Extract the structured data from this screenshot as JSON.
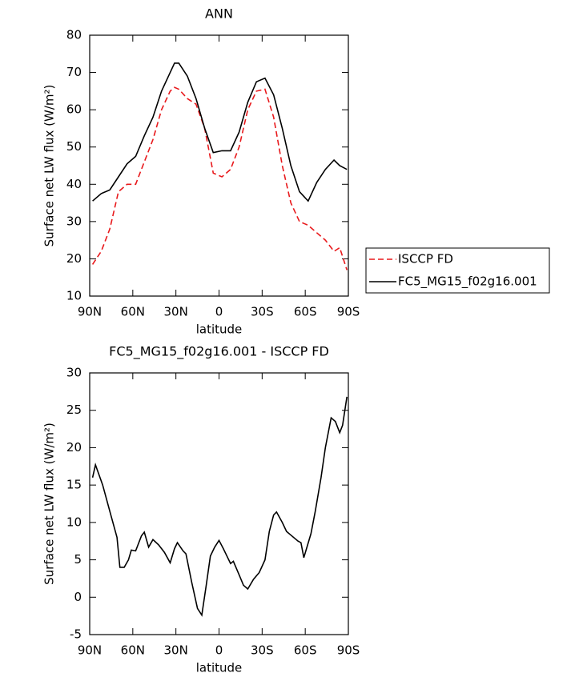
{
  "chart_data": [
    {
      "type": "line",
      "title": "ANN",
      "x_label": "latitude",
      "y_label": "Surface net LW flux (W/m²)",
      "xlim": [
        90,
        -90
      ],
      "xticks": [
        {
          "value": 90,
          "label": "90N"
        },
        {
          "value": 60,
          "label": "60N"
        },
        {
          "value": 30,
          "label": "30N"
        },
        0,
        {
          "value": -30,
          "label": "30S"
        },
        {
          "value": -60,
          "label": "60S"
        },
        {
          "value": -90,
          "label": "90S"
        }
      ],
      "ylim": [
        10,
        80
      ],
      "yticks": [
        10,
        20,
        30,
        40,
        50,
        60,
        70,
        80
      ],
      "x": [
        88,
        82,
        76,
        70,
        64,
        58,
        52,
        46,
        40,
        34,
        31,
        28,
        22,
        16,
        10,
        4,
        -2,
        -8,
        -14,
        -20,
        -26,
        -32,
        -38,
        -44,
        -50,
        -56,
        -62,
        -68,
        -74,
        -80,
        -84,
        -89
      ],
      "series": [
        {
          "name": "ISCCP FD",
          "color": "#e8191c",
          "dashed": true,
          "values": [
            18.5,
            22,
            28,
            38,
            40,
            40,
            46,
            52,
            60,
            65,
            66,
            65.5,
            63,
            61.5,
            55,
            43,
            42,
            44,
            50,
            60,
            65,
            65.5,
            58,
            45,
            35,
            30,
            29,
            27,
            25,
            22,
            23,
            17
          ]
        },
        {
          "name": "FC5_MG15_f02g16.001",
          "color": "#000000",
          "dashed": false,
          "values": [
            35.5,
            37.5,
            38.5,
            42,
            45.5,
            47.5,
            53,
            58,
            65,
            70,
            72.5,
            72.5,
            69,
            63,
            55,
            48.5,
            49,
            49,
            54,
            62,
            67.5,
            68.5,
            64,
            55,
            45,
            38,
            35.5,
            40.5,
            44,
            46.5,
            45,
            44
          ]
        }
      ]
    },
    {
      "type": "line",
      "title": "FC5_MG15_f02g16.001 - ISCCP FD",
      "x_label": "latitude",
      "y_label": "Surface net LW flux (W/m²)",
      "xlim": [
        90,
        -90
      ],
      "xticks": [
        {
          "value": 90,
          "label": "90N"
        },
        {
          "value": 60,
          "label": "60N"
        },
        {
          "value": 30,
          "label": "30N"
        },
        0,
        {
          "value": -30,
          "label": "30S"
        },
        {
          "value": -60,
          "label": "60S"
        },
        {
          "value": -90,
          "label": "90S"
        }
      ],
      "ylim": [
        -5,
        30
      ],
      "yticks": [
        -5,
        0,
        5,
        10,
        15,
        20,
        25,
        30
      ],
      "x": [
        88,
        86,
        81,
        76,
        71,
        69,
        66,
        63,
        61,
        58,
        54,
        52,
        49,
        46,
        42,
        38,
        34,
        31,
        29,
        25,
        23,
        19,
        15,
        12,
        9,
        6,
        3,
        0,
        -3,
        -6,
        -8,
        -10,
        -14,
        -17,
        -20,
        -24,
        -28,
        -32,
        -35,
        -38,
        -40,
        -44,
        -47,
        -50,
        -55,
        -57,
        -59,
        -64,
        -67,
        -71,
        -74,
        -78,
        -81,
        -84,
        -86,
        -89
      ],
      "series": [
        {
          "name": "FC5_MG15_f02g16.001 - ISCCP FD",
          "color": "#000000",
          "dashed": false,
          "values": [
            16,
            17.7,
            15,
            11.5,
            8,
            4,
            4,
            5,
            6.3,
            6.2,
            8.2,
            8.7,
            6.7,
            7.7,
            7,
            6,
            4.6,
            6.5,
            7.3,
            6.2,
            5.8,
            2,
            -1.5,
            -2.4,
            1.5,
            5.5,
            6.7,
            7.6,
            6.5,
            5.3,
            4.5,
            4.8,
            3,
            1.6,
            1.1,
            2.4,
            3.3,
            5,
            8.8,
            11,
            11.4,
            10,
            8.8,
            8.3,
            7.5,
            7.3,
            5.3,
            8.5,
            11.5,
            16,
            20,
            24,
            23.5,
            22,
            23,
            26.8
          ]
        }
      ]
    }
  ]
}
